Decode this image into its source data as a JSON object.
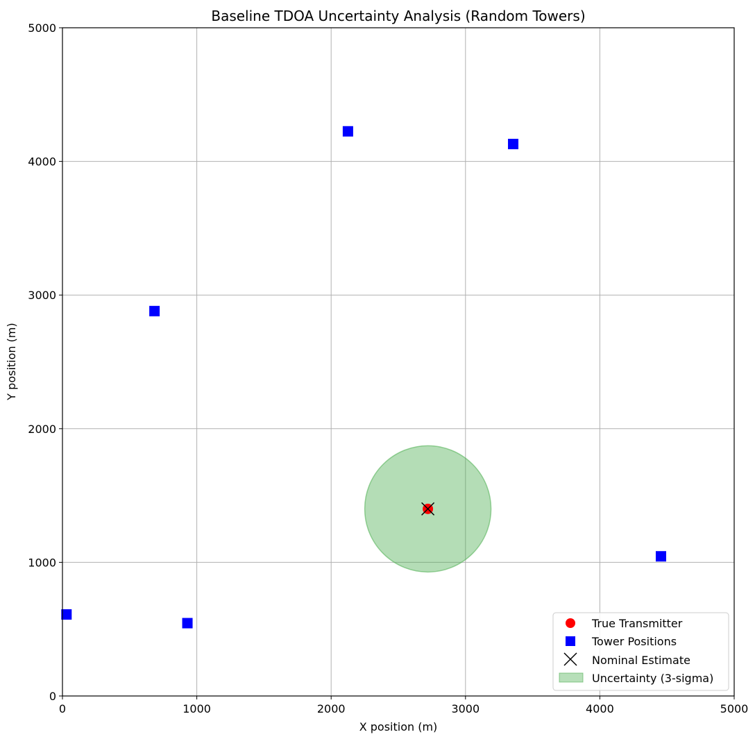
{
  "chart_data": {
    "type": "scatter",
    "title": "Baseline TDOA Uncertainty Analysis (Random Towers)",
    "xlabel": "X position (m)",
    "ylabel": "Y position (m)",
    "xlim": [
      0,
      5000
    ],
    "ylim": [
      0,
      5000
    ],
    "xticks": [
      0,
      1000,
      2000,
      3000,
      4000,
      5000
    ],
    "yticks": [
      0,
      1000,
      2000,
      3000,
      4000,
      5000
    ],
    "grid": true,
    "legend_position": "lower-right",
    "series": [
      {
        "name": "True Transmitter",
        "marker": "circle",
        "color": "#ff0000",
        "points": [
          {
            "x": 2720,
            "y": 1400
          }
        ]
      },
      {
        "name": "Tower Positions",
        "marker": "square",
        "color": "#0000ff",
        "points": [
          {
            "x": 30,
            "y": 610
          },
          {
            "x": 930,
            "y": 545
          },
          {
            "x": 685,
            "y": 2880
          },
          {
            "x": 2125,
            "y": 4225
          },
          {
            "x": 3355,
            "y": 4130
          },
          {
            "x": 4455,
            "y": 1045
          }
        ]
      },
      {
        "name": "Nominal Estimate",
        "marker": "x",
        "color": "#000000",
        "points": [
          {
            "x": 2720,
            "y": 1400
          }
        ]
      },
      {
        "name": "Uncertainty (3-sigma)",
        "marker": "filled-circle-region",
        "color": "#4caf50",
        "center": {
          "x": 2720,
          "y": 1400
        },
        "radius": 470
      }
    ]
  }
}
